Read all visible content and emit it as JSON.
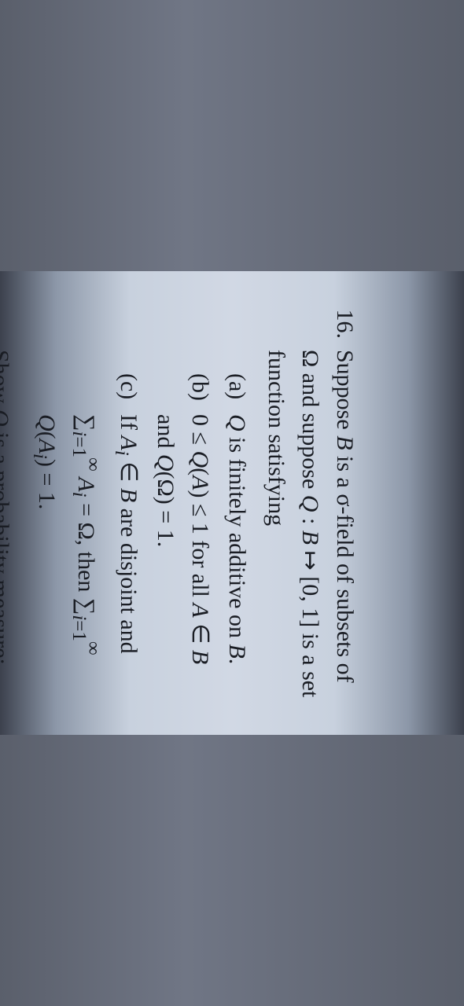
{
  "problem": {
    "number": "16.",
    "intro_html": "Suppose <span class='cal'>B</span> is a σ-field of subsets of Ω and suppose <span class='math-i'>Q</span> : <span class='cal'>B</span> ↦ [0, 1] is a set function satisfying",
    "items": [
      {
        "label": "(a)",
        "text_html": "<span class='math-i'>Q</span> is finitely additive on <span class='cal'>B</span>."
      },
      {
        "label": "(b)",
        "text_html": "0 ≤ <span class='math-i'>Q</span>(<span class='math-i'>A</span>) ≤ 1 for all <span class='math-i'>A</span> ∈ <span class='cal'>B</span> and <span class='math-i'>Q</span>(Ω) = 1."
      },
      {
        "label": "(c)",
        "text_html": "If <span class='math-i'>A<sub>i</sub></span> ∈ <span class='cal'>B</span> are disjoint and ∑<sub><span class='math-i'>i</span>=1</sub><sup>∞</sup> <span class='math-i'>A<sub>i</sub></span> = Ω, then ∑<sub><span class='math-i'>i</span>=1</sub><sup>∞</sup> <span class='math-i'>Q</span>(<span class='math-i'>A<sub>i</sub></span>) = 1."
      }
    ],
    "conclusion_html": "Show <span class='math-i'>Q</span> is a probability measure; that is, show <span class='math-i'>Q</span> is σ-additive."
  },
  "colors": {
    "text": "#1a1d24",
    "paper_mid": "#d1d8e4",
    "paper_edge": "#3c414d"
  },
  "typography": {
    "font_family": "Times New Roman",
    "font_size_pt": 22,
    "line_height": 1.45
  }
}
